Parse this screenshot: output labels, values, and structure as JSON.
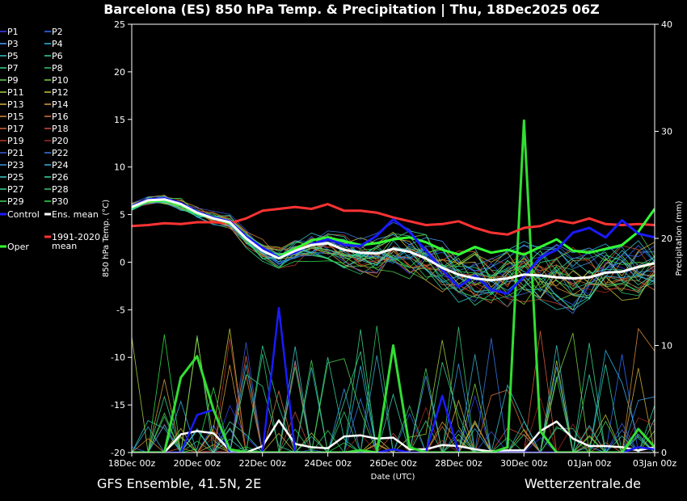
{
  "header": {
    "title": "Barcelona  (ES)  850 hPa Temp. & Precipitation | Thu, 18Dec2025 06Z"
  },
  "footer": {
    "left": "GFS Ensemble, 41.5N, 2E",
    "right": "Wetterzentrale.de"
  },
  "chart_data": {
    "type": "line",
    "title": "Barcelona  (ES)  850 hPa Temp. & Precipitation | Thu, 18Dec2025 06Z",
    "xlabel": "Date (UTC)",
    "ylabel": "850 hPa Temp. (°C)",
    "y2label": "Precipitation (mm)",
    "ylim": [
      -20,
      25
    ],
    "y2lim": [
      0,
      40
    ],
    "yticks": [
      25,
      20,
      15,
      10,
      5,
      0,
      -5,
      -10,
      -15,
      -20
    ],
    "y2ticks": [
      40,
      30,
      20,
      10,
      0
    ],
    "xlim_days": [
      0,
      16
    ],
    "xticks": [
      {
        "day": 0,
        "label": "18Dec 00z"
      },
      {
        "day": 2,
        "label": "20Dec 00z"
      },
      {
        "day": 4,
        "label": "22Dec 00z"
      },
      {
        "day": 6,
        "label": "24Dec 00z"
      },
      {
        "day": 8,
        "label": "26Dec 00z"
      },
      {
        "day": 10,
        "label": "28Dec 00z"
      },
      {
        "day": 12,
        "label": "30Dec 00z"
      },
      {
        "day": 14,
        "label": "01Jan 00z"
      },
      {
        "day": 16,
        "label": "03Jan 00z"
      }
    ],
    "grid": false,
    "legend_position": "left",
    "legend": [
      {
        "label": "P1",
        "color": "#3b3bff"
      },
      {
        "label": "P2",
        "color": "#2f6fff"
      },
      {
        "label": "P3",
        "color": "#4aa0ff"
      },
      {
        "label": "P4",
        "color": "#2eb8e6"
      },
      {
        "label": "P5",
        "color": "#2cc6c6"
      },
      {
        "label": "P6",
        "color": "#2cd4a0"
      },
      {
        "label": "P7",
        "color": "#39d68a"
      },
      {
        "label": "P8",
        "color": "#33c86a"
      },
      {
        "label": "P9",
        "color": "#52d64e"
      },
      {
        "label": "P10",
        "color": "#7ad63a"
      },
      {
        "label": "P11",
        "color": "#a6d23a"
      },
      {
        "label": "P12",
        "color": "#c8c83a"
      },
      {
        "label": "P13",
        "color": "#d8b43a"
      },
      {
        "label": "P14",
        "color": "#d8a03a"
      },
      {
        "label": "P15",
        "color": "#d88a3a"
      },
      {
        "label": "P16",
        "color": "#d8763a"
      },
      {
        "label": "P17",
        "color": "#d8623a"
      },
      {
        "label": "P18",
        "color": "#c84e3a"
      },
      {
        "label": "P19",
        "color": "#b83a2a"
      },
      {
        "label": "P20",
        "color": "#a02a20"
      },
      {
        "label": "P21",
        "color": "#3a5adc"
      },
      {
        "label": "P22",
        "color": "#3a7ae6"
      },
      {
        "label": "P23",
        "color": "#3a96e6"
      },
      {
        "label": "P24",
        "color": "#3ab0d6"
      },
      {
        "label": "P25",
        "color": "#3ac8c8"
      },
      {
        "label": "P26",
        "color": "#3ad6aa"
      },
      {
        "label": "P27",
        "color": "#3ad690"
      },
      {
        "label": "P28",
        "color": "#3ac874"
      },
      {
        "label": "P29",
        "color": "#46d25a"
      },
      {
        "label": "P30",
        "color": "#2ee04a"
      },
      {
        "label": "Control",
        "color": "#1a1aff"
      },
      {
        "label": "Ens. mean",
        "color": "#ffffff"
      },
      {
        "label": "Oper",
        "color": "#33ff33"
      },
      {
        "label": "1991-2020 mean",
        "color": "#ff3333"
      }
    ],
    "series": [
      {
        "name": "Ens. mean",
        "axis": "temp",
        "x": [
          0,
          0.5,
          1,
          1.5,
          2,
          2.5,
          3,
          3.5,
          4,
          4.5,
          5,
          5.5,
          6,
          6.5,
          7,
          7.5,
          8,
          8.5,
          9,
          9.5,
          10,
          10.5,
          11,
          11.5,
          12,
          12.5,
          13,
          13.5,
          14,
          14.5,
          15,
          15.5,
          16
        ],
        "values": [
          5.8,
          6.5,
          6.6,
          6.1,
          5.2,
          4.6,
          4.2,
          2.5,
          1.2,
          0.4,
          1.2,
          1.8,
          2.0,
          1.3,
          1.0,
          0.9,
          1.4,
          1.1,
          0.4,
          -0.6,
          -1.3,
          -1.7,
          -1.9,
          -1.7,
          -1.3,
          -1.4,
          -1.6,
          -1.7,
          -1.6,
          -1.1,
          -1.0,
          -0.5,
          -0.1
        ]
      },
      {
        "name": "Control",
        "axis": "temp",
        "x": [
          0,
          0.5,
          1,
          1.5,
          2,
          2.5,
          3,
          3.5,
          4,
          4.5,
          5,
          5.5,
          6,
          6.5,
          7,
          7.5,
          8,
          8.5,
          9,
          9.5,
          10,
          10.5,
          11,
          11.5,
          12,
          12.5,
          13,
          13.5,
          14,
          14.5,
          15,
          15.5,
          16
        ],
        "values": [
          5.9,
          6.6,
          6.7,
          6.2,
          5.3,
          4.7,
          4.3,
          2.7,
          1.5,
          0.5,
          1.0,
          1.9,
          2.4,
          1.8,
          1.7,
          2.8,
          4.5,
          3.2,
          1.2,
          -0.8,
          -2.6,
          -1.4,
          -2.9,
          -3.3,
          -1.5,
          0.5,
          1.3,
          3.1,
          3.6,
          2.6,
          4.4,
          3.0,
          2.6
        ]
      },
      {
        "name": "Oper",
        "axis": "temp",
        "x": [
          0,
          0.5,
          1,
          1.5,
          2,
          2.5,
          3,
          3.5,
          4,
          4.5,
          5,
          5.5,
          6,
          6.5,
          7,
          7.5,
          8,
          8.5,
          9,
          9.5,
          10,
          10.5,
          11,
          11.5,
          12,
          12.5,
          13,
          13.5,
          14,
          14.5,
          15,
          15.5,
          16
        ],
        "values": [
          5.7,
          6.4,
          6.5,
          6.0,
          5.1,
          4.6,
          4.1,
          2.6,
          1.4,
          0.6,
          1.4,
          2.3,
          2.6,
          2.2,
          1.8,
          2.0,
          2.4,
          2.6,
          2.1,
          1.3,
          0.8,
          1.6,
          1.0,
          1.3,
          0.8,
          1.6,
          2.4,
          1.2,
          1.0,
          1.4,
          1.8,
          3.2,
          5.6
        ]
      },
      {
        "name": "1991-2020 mean",
        "axis": "temp",
        "x": [
          0,
          0.5,
          1,
          1.5,
          2,
          2.5,
          3,
          3.5,
          4,
          4.5,
          5,
          5.5,
          6,
          6.5,
          7,
          7.5,
          8,
          8.5,
          9,
          9.5,
          10,
          10.5,
          11,
          11.5,
          12,
          12.5,
          13,
          13.5,
          14,
          14.5,
          15,
          15.5,
          16
        ],
        "values": [
          3.8,
          3.9,
          4.1,
          4.0,
          4.2,
          4.2,
          4.1,
          4.6,
          5.4,
          5.6,
          5.8,
          5.6,
          6.1,
          5.4,
          5.4,
          5.2,
          4.7,
          4.3,
          3.9,
          4.0,
          4.3,
          3.6,
          3.1,
          2.9,
          3.6,
          3.8,
          4.4,
          4.1,
          4.6,
          4.0,
          3.9,
          4.0,
          3.9
        ]
      },
      {
        "name": "Ens. mean precip",
        "axis": "precip",
        "x": [
          0,
          0.5,
          1,
          1.5,
          2,
          2.5,
          3,
          3.5,
          4,
          4.5,
          5,
          5.5,
          6,
          6.5,
          7,
          7.5,
          8,
          8.5,
          9,
          9.5,
          10,
          10.5,
          11,
          11.5,
          12,
          12.5,
          13,
          13.5,
          14,
          14.5,
          15,
          15.5,
          16
        ],
        "values": [
          0,
          0,
          0,
          1.7,
          2.0,
          1.8,
          0.2,
          0,
          0.6,
          3.0,
          0.8,
          0.5,
          0.4,
          1.5,
          1.6,
          1.3,
          1.4,
          0.3,
          0.3,
          0.7,
          0.6,
          0.3,
          0.1,
          0.2,
          0.2,
          2.0,
          2.9,
          1.3,
          0.6,
          0.6,
          0.5,
          0.2,
          0.5
        ]
      },
      {
        "name": "Oper precip",
        "axis": "precip",
        "x": [
          0,
          0.5,
          1,
          1.5,
          2,
          2.5,
          3,
          3.5,
          4,
          4.5,
          5,
          5.5,
          6,
          6.5,
          7,
          7.5,
          8,
          8.5,
          9,
          9.5,
          10,
          10.5,
          11,
          11.5,
          12,
          12.5,
          13,
          13.5,
          14,
          14.5,
          15,
          15.5,
          16
        ],
        "values": [
          0,
          0,
          0,
          7.0,
          9.0,
          4.0,
          0.3,
          0,
          0,
          0,
          0,
          0,
          0,
          0,
          0.2,
          0,
          10.0,
          0.5,
          0,
          0,
          0,
          0,
          0,
          0.5,
          31.0,
          2.0,
          0,
          0,
          0,
          0,
          0,
          2.2,
          0.5
        ]
      },
      {
        "name": "Control precip",
        "axis": "precip",
        "x": [
          0,
          0.5,
          1,
          1.5,
          2,
          2.5,
          3,
          3.5,
          4,
          4.5,
          5,
          5.5,
          6,
          6.5,
          7,
          7.5,
          8,
          8.5,
          9,
          9.5,
          10,
          10.5,
          11,
          11.5,
          12,
          12.5,
          13,
          13.5,
          14,
          14.5,
          15,
          15.5,
          16
        ],
        "values": [
          0,
          0,
          0,
          0,
          3.5,
          4.0,
          0,
          0,
          0,
          13.5,
          0,
          0,
          0,
          0,
          0,
          0,
          0.3,
          0,
          0,
          5.3,
          0,
          0,
          0,
          0,
          0,
          0,
          0,
          0,
          0,
          0,
          0,
          0.5,
          0.3
        ]
      }
    ]
  }
}
